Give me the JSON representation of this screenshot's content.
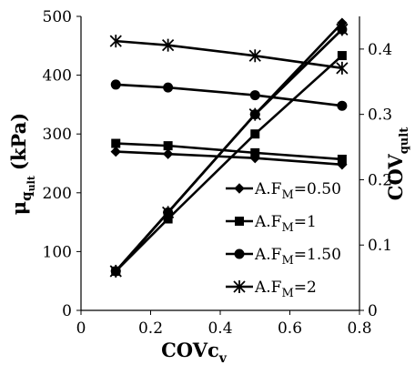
{
  "chart_data": {
    "type": "line",
    "title": "",
    "x": [
      0.1,
      0.25,
      0.5,
      0.75
    ],
    "xlabel": {
      "main": "COVc",
      "sub": "v"
    },
    "ylabel_left": {
      "main": "μ",
      "sub": "q",
      "subsub": "ult",
      "unit": "(kPa)"
    },
    "ylabel_right": {
      "main": "COV",
      "sub": "qult"
    },
    "xlim": [
      0,
      0.8
    ],
    "ylim_left": [
      0,
      500
    ],
    "ylim_right": [
      0,
      0.45
    ],
    "x_ticks": [
      "0",
      "0.2",
      "0.4",
      "0.6",
      "0.8"
    ],
    "y_left_ticks": [
      "0",
      "100",
      "200",
      "300",
      "400",
      "500"
    ],
    "y_right_ticks": [
      "0",
      "0.1",
      "0.2",
      "0.3",
      "0.4"
    ],
    "grid": false,
    "legend_position": "right-middle",
    "legend_label_prefix": "A.F",
    "legend_label_sub": "M",
    "series": [
      {
        "name": "A.FM=0.50",
        "legend_value": "=0.50",
        "marker": "diamond",
        "mean_kpa": [
          270,
          266,
          259,
          248
        ],
        "cov": [
          0.06,
          0.15,
          0.3,
          0.44
        ]
      },
      {
        "name": "A.FM=1",
        "legend_value": "=1",
        "marker": "square",
        "mean_kpa": [
          284,
          280,
          268,
          257
        ],
        "cov": [
          0.06,
          0.14,
          0.27,
          0.39
        ]
      },
      {
        "name": "A.FM=1.50",
        "legend_value": "=1.50",
        "marker": "circle",
        "mean_kpa": [
          384,
          379,
          366,
          348
        ],
        "cov": [
          0.06,
          0.15,
          0.3,
          0.43
        ]
      },
      {
        "name": "A.FM=2",
        "legend_value": "=2",
        "marker": "star",
        "mean_kpa": [
          458,
          451,
          433,
          412
        ],
        "cov": [
          0.06,
          0.15,
          0.3,
          0.43
        ]
      }
    ]
  }
}
